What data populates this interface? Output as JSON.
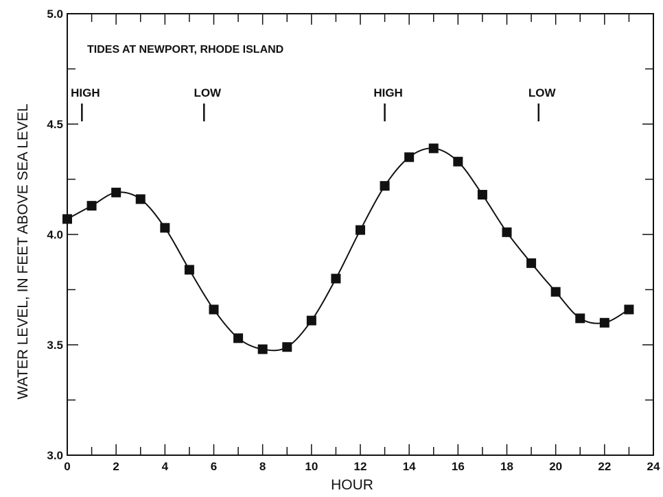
{
  "chart_data": {
    "type": "line",
    "title": "TIDES AT NEWPORT, RHODE ISLAND",
    "xlabel": "HOUR",
    "ylabel": "WATER LEVEL, IN FEET ABOVE SEA LEVEL",
    "xlim": [
      0,
      24
    ],
    "ylim": [
      3.0,
      5.0
    ],
    "x_ticks": [
      0,
      2,
      4,
      6,
      8,
      10,
      12,
      14,
      16,
      18,
      20,
      22,
      24
    ],
    "y_ticks": [
      3.0,
      3.5,
      4.0,
      4.5,
      5.0
    ],
    "y_tick_labels": [
      "3.0",
      "3.5",
      "4.0",
      "4.5",
      "5.0"
    ],
    "grid": false,
    "legend": "none",
    "marker": "square",
    "color": "#111111",
    "series": [
      {
        "x": [
          0,
          1,
          2,
          3,
          4,
          5,
          6,
          7,
          8,
          9,
          10,
          11,
          12,
          13,
          14,
          15,
          16,
          17,
          18,
          19,
          20,
          21,
          22,
          23
        ],
        "values": [
          4.07,
          4.13,
          4.19,
          4.16,
          4.03,
          3.84,
          3.66,
          3.53,
          3.48,
          3.49,
          3.61,
          3.8,
          4.02,
          4.22,
          4.35,
          4.39,
          4.33,
          4.18,
          4.01,
          3.87,
          3.74,
          3.62,
          3.6,
          3.66
        ]
      }
    ],
    "annotations": [
      {
        "label": "HIGH",
        "x": 0.6,
        "y": 4.5
      },
      {
        "label": "LOW",
        "x": 5.6,
        "y": 4.5
      },
      {
        "label": "HIGH",
        "x": 13.0,
        "y": 4.5
      },
      {
        "label": "LOW",
        "x": 19.3,
        "y": 4.5
      }
    ]
  }
}
